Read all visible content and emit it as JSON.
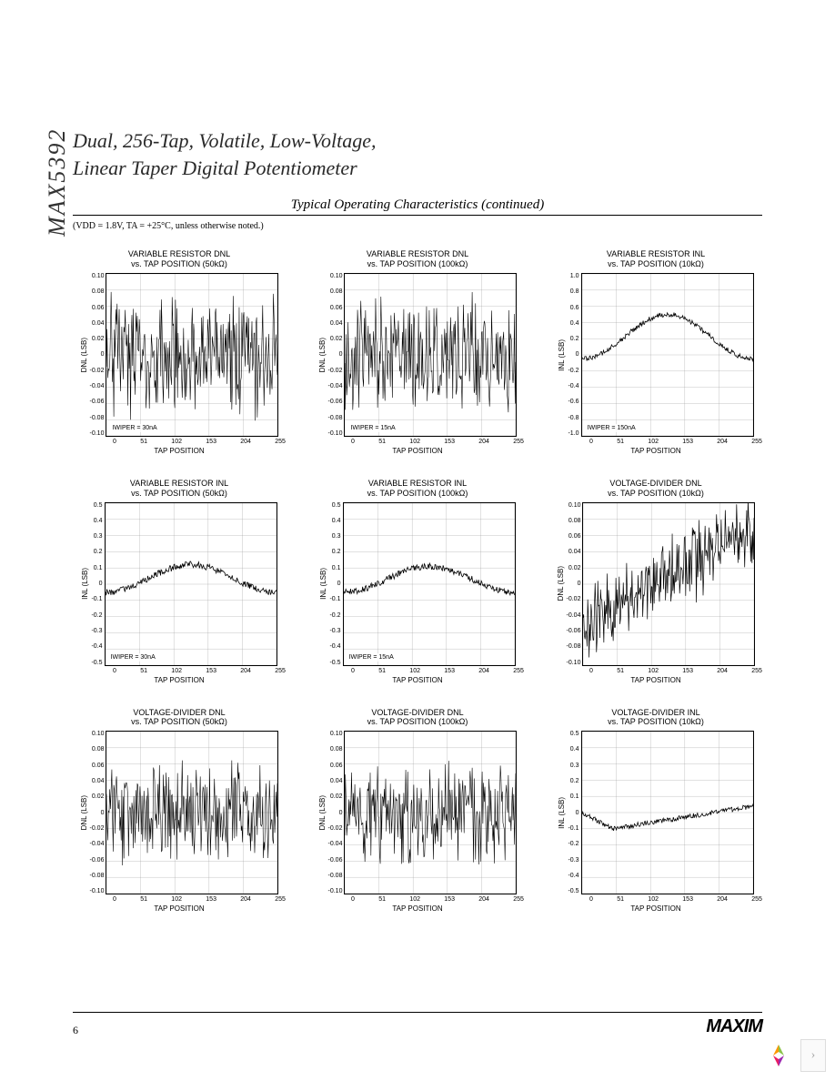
{
  "side_label": "MAX5392",
  "title_line1": "Dual, 256-Tap, Volatile, Low-Voltage,",
  "title_line2": "Linear Taper Digital Potentiometer",
  "section_title": "Typical Operating Characteristics (continued)",
  "conditions_note": "(VDD = 1.8V, TA = +25°C, unless otherwise noted.)",
  "page_number": "6",
  "logo_text": "MAXIM",
  "nav_chevron": "›",
  "x_axis": {
    "label": "TAP POSITION",
    "ticks": [
      "0",
      "51",
      "102",
      "153",
      "204",
      "255"
    ],
    "min": 0,
    "max": 255
  },
  "charts": [
    {
      "id": "c1",
      "title_l1": "VARIABLE RESISTOR DNL",
      "title_l2": "vs. TAP POSITION (50kΩ)",
      "ylabel": "DNL (LSB)",
      "yticks": [
        "0.10",
        "0.08",
        "0.06",
        "0.04",
        "0.02",
        "0",
        "-0.02",
        "-0.04",
        "-0.06",
        "-0.08",
        "-0.10"
      ],
      "ymin": -0.1,
      "ymax": 0.1,
      "annotation": "IWIPER = 30nA",
      "style": "noise_dense",
      "base": 0.0,
      "amp": 0.055,
      "slope": 0,
      "line_color": "#000000",
      "line_width": 0.6,
      "grid_color": "#999999",
      "grid_width": 0.3
    },
    {
      "id": "c2",
      "title_l1": "VARIABLE RESISTOR DNL",
      "title_l2": "vs. TAP POSITION (100kΩ)",
      "ylabel": "DNL (LSB)",
      "yticks": [
        "0.10",
        "0.08",
        "0.06",
        "0.04",
        "0.02",
        "0",
        "-0.02",
        "-0.04",
        "-0.06",
        "-0.08",
        "-0.10"
      ],
      "ymin": -0.1,
      "ymax": 0.1,
      "annotation": "IWIPER = 15nA",
      "style": "noise_dense",
      "base": 0.0,
      "amp": 0.05,
      "slope": 0,
      "line_color": "#000000",
      "line_width": 0.6,
      "grid_color": "#999999",
      "grid_width": 0.3
    },
    {
      "id": "c3",
      "title_l1": "VARIABLE RESISTOR INL",
      "title_l2": "vs. TAP POSITION (10kΩ)",
      "ylabel": "INL (LSB)",
      "yticks": [
        "1.0",
        "0.8",
        "0.6",
        "0.4",
        "0.2",
        "0",
        "-0.2",
        "-0.4",
        "-0.6",
        "-0.8",
        "-1.0"
      ],
      "ymin": -1.0,
      "ymax": 1.0,
      "annotation": "IWIPER = 150nA",
      "style": "hump",
      "base": -0.05,
      "peak": 0.5,
      "noise": 0.03,
      "line_color": "#000000",
      "line_width": 0.8,
      "grid_color": "#999999",
      "grid_width": 0.3
    },
    {
      "id": "c4",
      "title_l1": "VARIABLE RESISTOR INL",
      "title_l2": "vs. TAP POSITION (50kΩ)",
      "ylabel": "INL (LSB)",
      "yticks": [
        "0.5",
        "0.4",
        "0.3",
        "0.2",
        "0.1",
        "0",
        "-0.1",
        "-0.2",
        "-0.3",
        "-0.4",
        "-0.5"
      ],
      "ymin": -0.5,
      "ymax": 0.5,
      "annotation": "IWIPER = 30nA",
      "style": "hump",
      "base": -0.05,
      "peak": 0.12,
      "noise": 0.02,
      "line_color": "#000000",
      "line_width": 0.8,
      "grid_color": "#999999",
      "grid_width": 0.3
    },
    {
      "id": "c5",
      "title_l1": "VARIABLE RESISTOR INL",
      "title_l2": "vs. TAP POSITION (100kΩ)",
      "ylabel": "INL (LSB)",
      "yticks": [
        "0.5",
        "0.4",
        "0.3",
        "0.2",
        "0.1",
        "0",
        "-0.1",
        "-0.2",
        "-0.3",
        "-0.4",
        "-0.5"
      ],
      "ymin": -0.5,
      "ymax": 0.5,
      "annotation": "IWIPER = 15nA",
      "style": "hump",
      "base": -0.05,
      "peak": 0.11,
      "noise": 0.02,
      "line_color": "#000000",
      "line_width": 0.8,
      "grid_color": "#999999",
      "grid_width": 0.3
    },
    {
      "id": "c6",
      "title_l1": "VOLTAGE-DIVIDER DNL",
      "title_l2": "vs. TAP POSITION (10kΩ)",
      "ylabel": "DNL (LSB)",
      "yticks": [
        "0.10",
        "0.08",
        "0.06",
        "0.04",
        "0.02",
        "0",
        "-0.02",
        "-0.04",
        "-0.06",
        "-0.08",
        "-0.10"
      ],
      "ymin": -0.1,
      "ymax": 0.1,
      "annotation": "",
      "style": "noise_rise",
      "base_start": -0.05,
      "base_end": 0.07,
      "amp": 0.03,
      "line_color": "#000000",
      "line_width": 0.7,
      "grid_color": "#999999",
      "grid_width": 0.3
    },
    {
      "id": "c7",
      "title_l1": "VOLTAGE-DIVIDER DNL",
      "title_l2": "vs. TAP POSITION (50kΩ)",
      "ylabel": "DNL (LSB)",
      "yticks": [
        "0.10",
        "0.08",
        "0.06",
        "0.04",
        "0.02",
        "0",
        "-0.02",
        "-0.04",
        "-0.06",
        "-0.08",
        "-0.10"
      ],
      "ymin": -0.1,
      "ymax": 0.1,
      "annotation": "",
      "style": "noise_dense",
      "base": 0.0,
      "amp": 0.045,
      "slope": 0,
      "line_color": "#000000",
      "line_width": 0.6,
      "grid_color": "#999999",
      "grid_width": 0.3
    },
    {
      "id": "c8",
      "title_l1": "VOLTAGE-DIVIDER DNL",
      "title_l2": "vs. TAP POSITION (100kΩ)",
      "ylabel": "DNL (LSB)",
      "yticks": [
        "0.10",
        "0.08",
        "0.06",
        "0.04",
        "0.02",
        "0",
        "-0.02",
        "-0.04",
        "-0.06",
        "-0.08",
        "-0.10"
      ],
      "ymin": -0.1,
      "ymax": 0.1,
      "annotation": "",
      "style": "noise_dense",
      "base": 0.0,
      "amp": 0.045,
      "slope": 0,
      "line_color": "#000000",
      "line_width": 0.6,
      "grid_color": "#999999",
      "grid_width": 0.3
    },
    {
      "id": "c9",
      "title_l1": "VOLTAGE-DIVIDER INL",
      "title_l2": "vs. TAP POSITION (10kΩ)",
      "ylabel": "INL (LSB)",
      "yticks": [
        "0.5",
        "0.4",
        "0.3",
        "0.2",
        "0.1",
        "0",
        "-0.1",
        "-0.2",
        "-0.3",
        "-0.4",
        "-0.5"
      ],
      "ymin": -0.5,
      "ymax": 0.5,
      "annotation": "",
      "style": "sag_rise",
      "start": 0.0,
      "dip": -0.1,
      "end": 0.04,
      "noise": 0.015,
      "line_color": "#000000",
      "line_width": 0.8,
      "grid_color": "#999999",
      "grid_width": 0.3
    }
  ]
}
